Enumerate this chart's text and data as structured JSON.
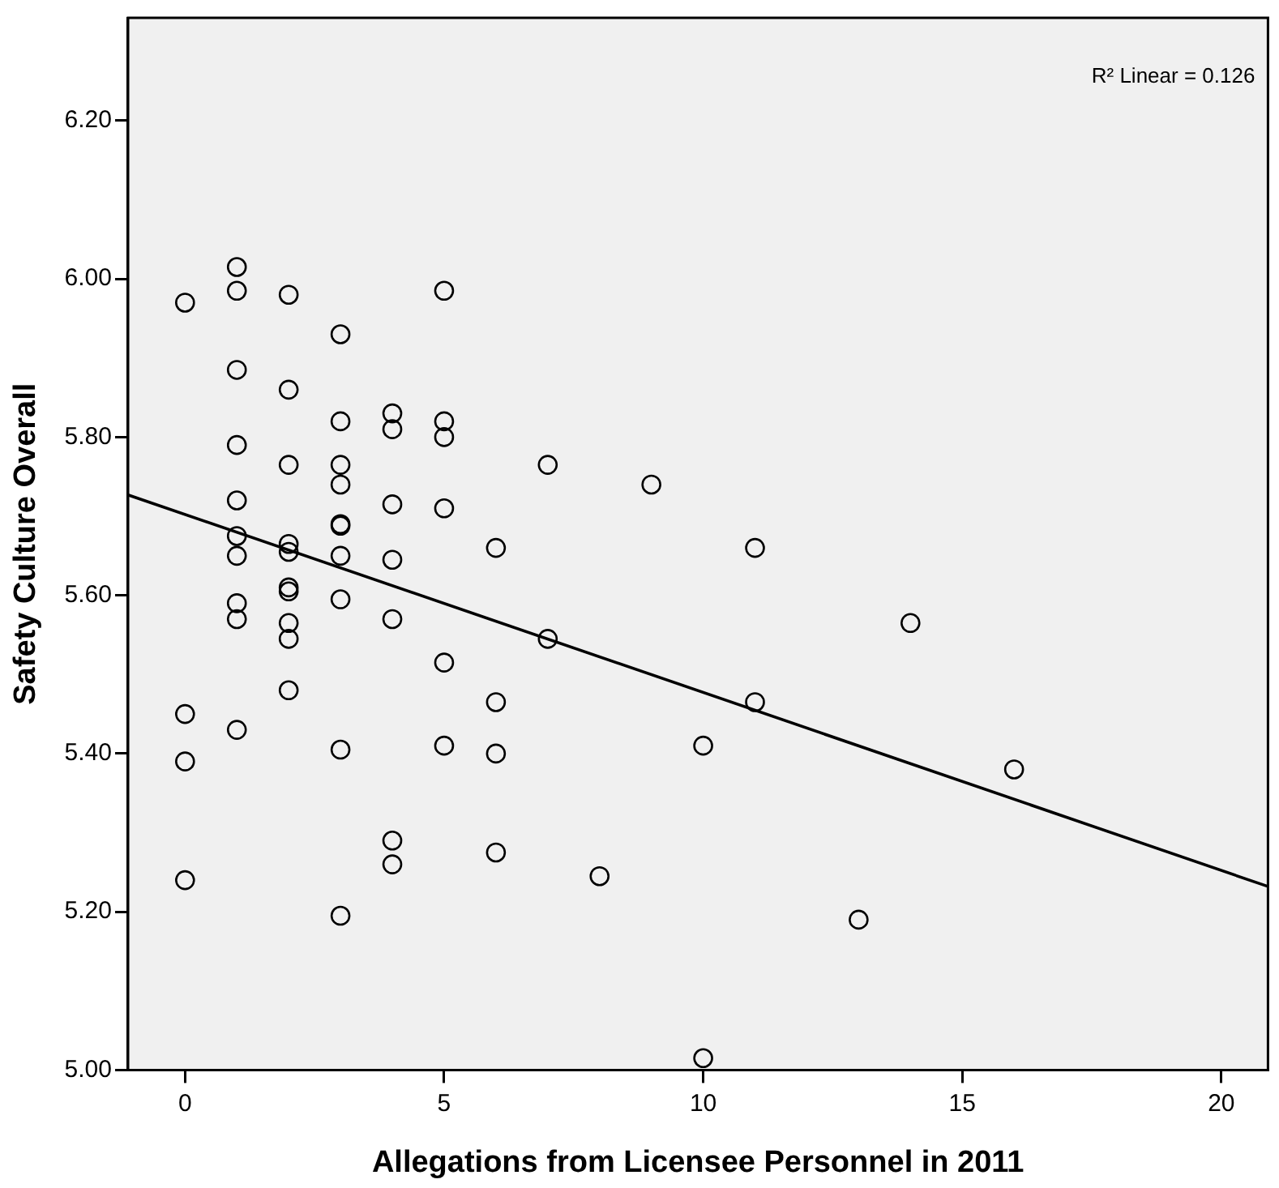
{
  "chart_data": {
    "type": "scatter",
    "xlabel": "Allegations from Licensee Personnel in 2011",
    "ylabel": "Safety Culture Overall",
    "xlim": [
      -1.1,
      20.9
    ],
    "xticks": [
      0,
      5,
      10,
      15,
      20
    ],
    "ylim": [
      5.0,
      6.33
    ],
    "yticks": [
      {
        "value": 5.0,
        "label": "5.00"
      },
      {
        "value": 5.2,
        "label": "5.20"
      },
      {
        "value": 5.4,
        "label": "5.40"
      },
      {
        "value": 5.6,
        "label": "5.60"
      },
      {
        "value": 5.8,
        "label": "5.80"
      },
      {
        "value": 6.0,
        "label": "6.00"
      },
      {
        "value": 6.2,
        "label": "6.20"
      }
    ],
    "grid": false,
    "legend": false,
    "marker": "circle",
    "annotations": [
      "R² Linear = 0.126"
    ],
    "series": [
      {
        "color": "#000000",
        "x": [
          0,
          0,
          0,
          0,
          1,
          1,
          1,
          1,
          1,
          1,
          1,
          1,
          1,
          1,
          2,
          2,
          2,
          2,
          2,
          2,
          2,
          2,
          2,
          2,
          3,
          3,
          3,
          3,
          3,
          3,
          3,
          3,
          3,
          3,
          4,
          4,
          4,
          4,
          4,
          4,
          4,
          5,
          5,
          5,
          5,
          5,
          5,
          6,
          6,
          6,
          6,
          7,
          7,
          8,
          9,
          10,
          10,
          11,
          11,
          13,
          14,
          16
        ],
        "values": [
          5.97,
          5.45,
          5.39,
          5.24,
          6.015,
          5.985,
          5.885,
          5.79,
          5.72,
          5.675,
          5.65,
          5.59,
          5.57,
          5.43,
          5.98,
          5.86,
          5.765,
          5.665,
          5.655,
          5.61,
          5.605,
          5.565,
          5.545,
          5.48,
          5.93,
          5.82,
          5.765,
          5.74,
          5.69,
          5.688,
          5.65,
          5.595,
          5.405,
          5.195,
          5.83,
          5.81,
          5.715,
          5.645,
          5.57,
          5.29,
          5.26,
          5.985,
          5.82,
          5.8,
          5.71,
          5.515,
          5.41,
          5.66,
          5.465,
          5.4,
          5.275,
          5.765,
          5.545,
          5.245,
          5.74,
          5.41,
          5.015,
          5.66,
          5.465,
          5.19,
          5.565,
          5.38
        ]
      },
      {
        "type": "line",
        "color": "#000000",
        "x": [
          -1.1,
          20.9
        ],
        "values": [
          5.727,
          5.232
        ],
        "marker": "none",
        "line_style": "solid"
      }
    ]
  }
}
